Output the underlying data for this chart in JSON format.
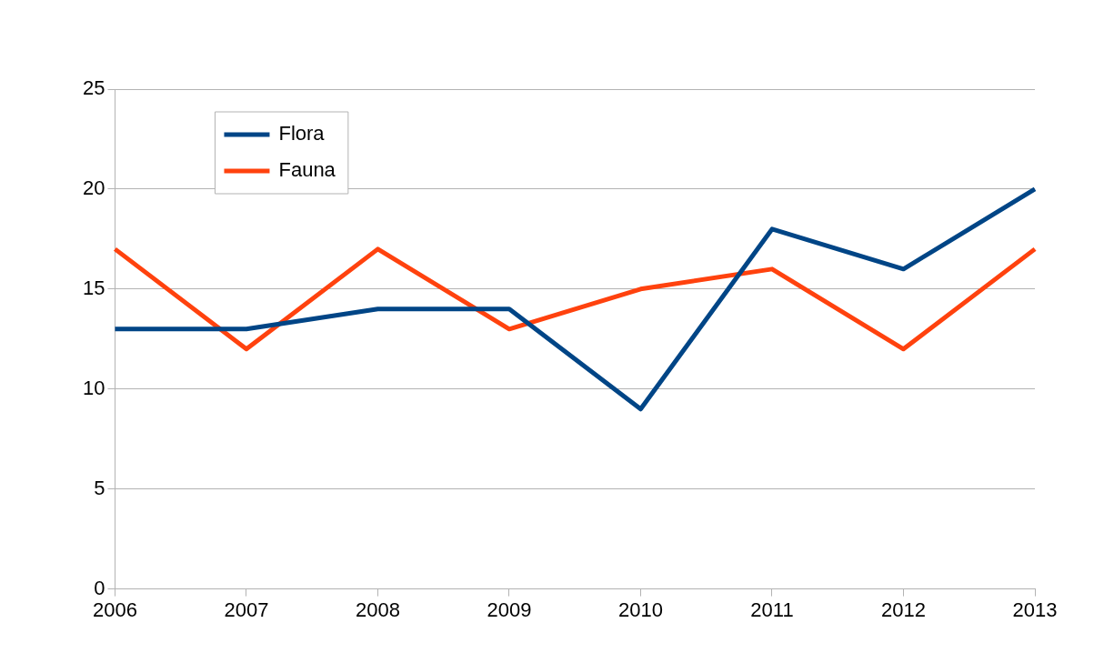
{
  "chart_data": {
    "type": "line",
    "categories": [
      "2006",
      "2007",
      "2008",
      "2009",
      "2010",
      "2011",
      "2012",
      "2013"
    ],
    "series": [
      {
        "name": "Flora",
        "color": "#004586",
        "values": [
          13,
          13,
          14,
          14,
          9,
          18,
          16,
          20
        ]
      },
      {
        "name": "Fauna",
        "color": "#ff420e",
        "values": [
          17,
          12,
          17,
          13,
          15,
          16,
          12,
          17
        ]
      }
    ],
    "ylim": [
      0,
      25
    ],
    "yticks": [
      0,
      5,
      10,
      15,
      20,
      25
    ],
    "grid": "y",
    "legend": "top left",
    "marker": "none",
    "line_style": "solid"
  }
}
